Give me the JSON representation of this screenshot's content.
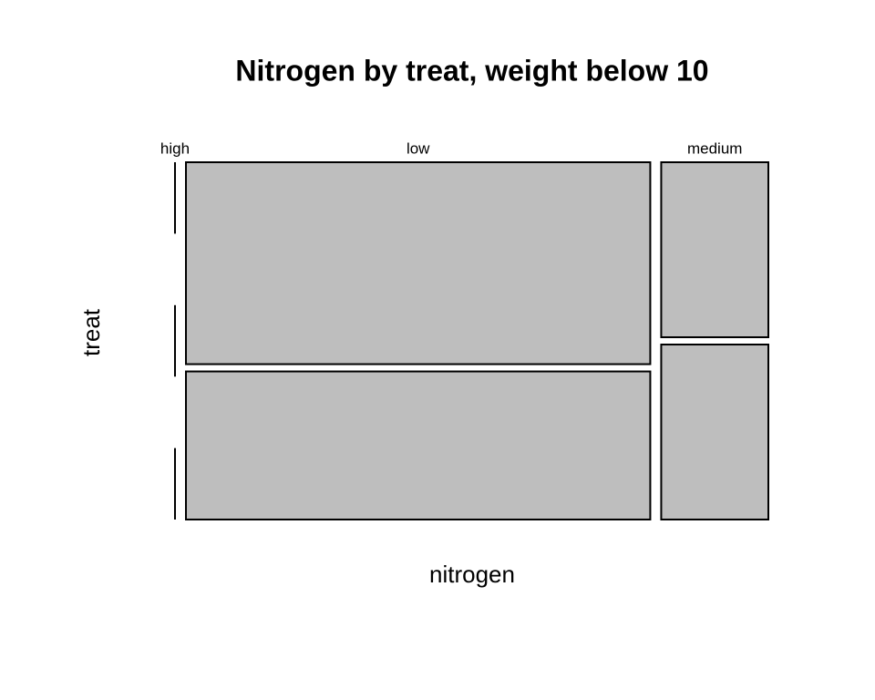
{
  "chart_data": {
    "type": "mosaic",
    "title": "Nitrogen by treat, weight below 10",
    "x_label": "nitrogen",
    "y_label": "treat",
    "categories": [
      "high",
      "low",
      "medium"
    ],
    "series": [
      {
        "values": [
          0,
          7.5,
          1.5
        ]
      },
      {
        "values": [
          0,
          0,
          0
        ]
      },
      {
        "values": [
          0,
          5.5,
          1.5
        ]
      }
    ],
    "color": "#bebebe"
  }
}
